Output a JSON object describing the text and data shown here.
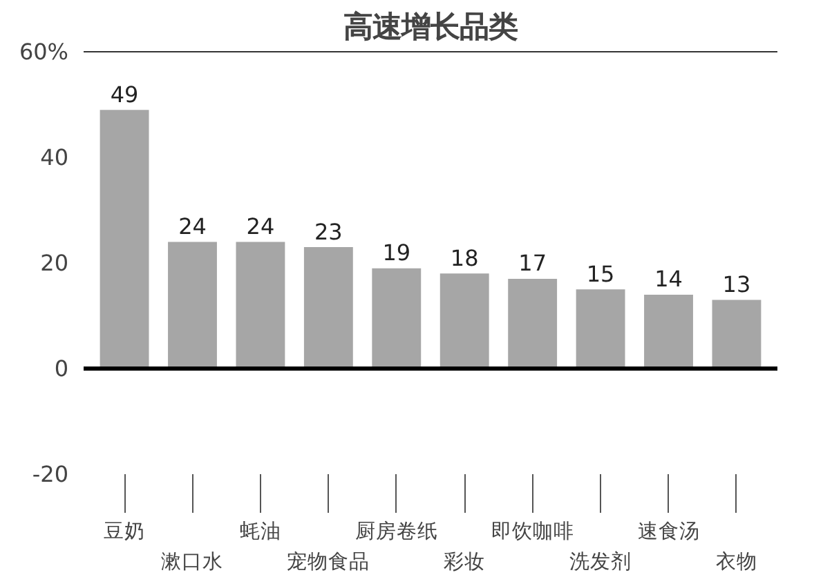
{
  "chart_data": {
    "type": "bar",
    "title": "高速增长品类",
    "categories": [
      "豆奶",
      "漱口水",
      "蚝油",
      "宠物食品",
      "厨房卷纸",
      "彩妆",
      "即饮咖啡",
      "洗发剂",
      "速食汤",
      "衣物"
    ],
    "values": [
      49,
      24,
      24,
      23,
      19,
      18,
      17,
      15,
      14,
      13
    ],
    "color": "#a6a6a6",
    "ylim": [
      -20,
      60
    ],
    "yticks": [
      -20,
      0,
      20,
      40,
      {
        "value": 60,
        "label": "60%"
      }
    ],
    "ref_lines": [
      {
        "axis": "y",
        "value": 0,
        "color": "#000000"
      }
    ],
    "data_labels": true,
    "grid": false
  }
}
